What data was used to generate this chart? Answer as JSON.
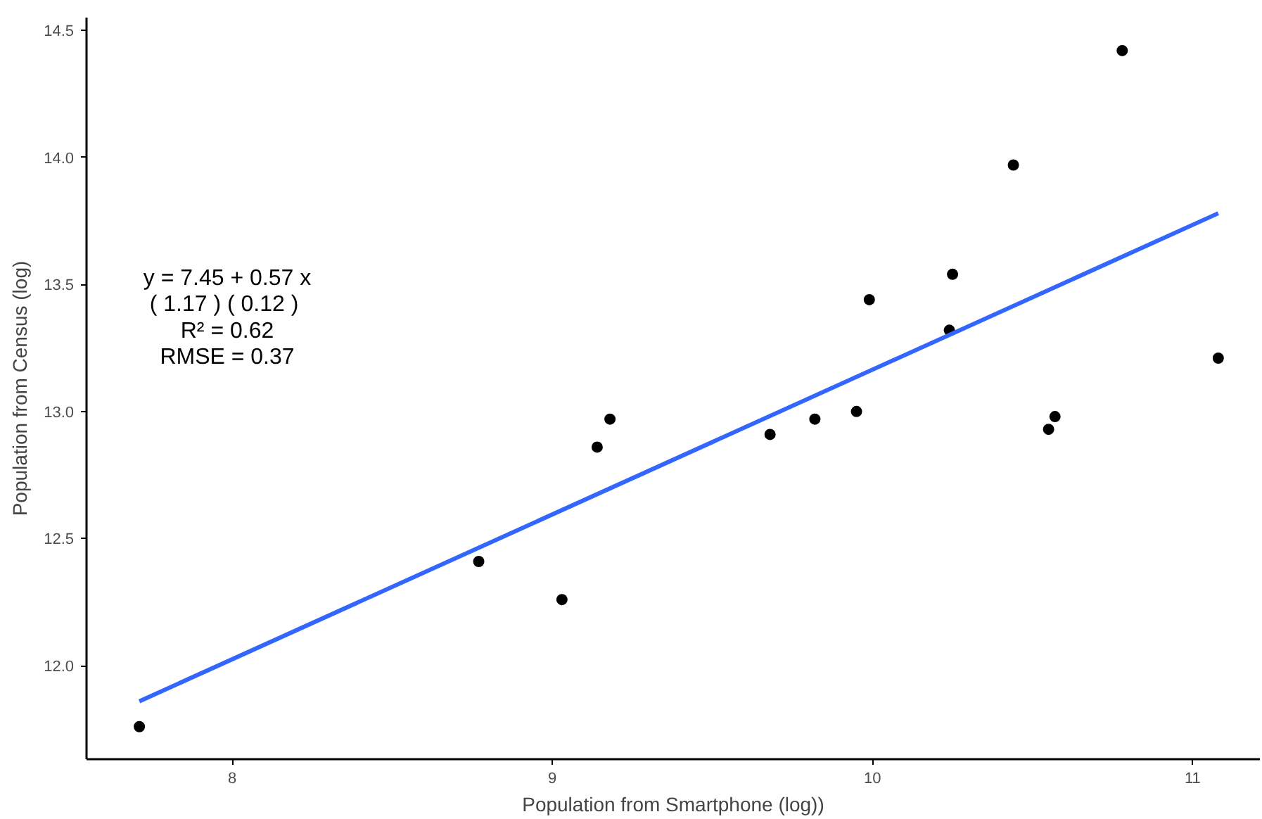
{
  "chart_data": {
    "type": "scatter",
    "xlabel": "Population from Smartphone (log))",
    "ylabel": "Population from Census (log)",
    "annotations": [
      "y = 7.45 + 0.57 x\n( 1.17 )  ( 0.12 )\nR² = 0.62\nRMSE = 0.37"
    ],
    "xlim": [
      7.545,
      11.21
    ],
    "ylim": [
      11.632,
      14.55
    ],
    "xticks": [
      8,
      9,
      10,
      11
    ],
    "yticks": [
      {
        "value": 12,
        "label": "12.0"
      },
      {
        "value": 12.5,
        "label": "12.5"
      },
      {
        "value": 13,
        "label": "13.0"
      },
      {
        "value": 13.5,
        "label": "13.5"
      },
      {
        "value": 14,
        "label": "14.0"
      },
      {
        "value": 14.5,
        "label": "14.5"
      }
    ],
    "grid": false,
    "series": [
      {
        "marker": "circle",
        "color": "#000000",
        "x": [
          7.71,
          8.77,
          9.03,
          9.14,
          9.18,
          9.68,
          9.82,
          9.95,
          9.99,
          10.24,
          10.25,
          10.44,
          10.78,
          10.55,
          10.57,
          11.08
        ],
        "values": [
          11.76,
          12.41,
          12.26,
          12.86,
          12.97,
          12.91,
          12.97,
          13.0,
          13.44,
          13.32,
          13.54,
          13.97,
          14.42,
          12.93,
          12.98,
          13.21
        ]
      },
      {
        "type": "line",
        "marker": "none",
        "color": "#3366ff",
        "x": [
          7.71,
          11.08
        ],
        "values": [
          11.86,
          13.78
        ]
      }
    ]
  }
}
